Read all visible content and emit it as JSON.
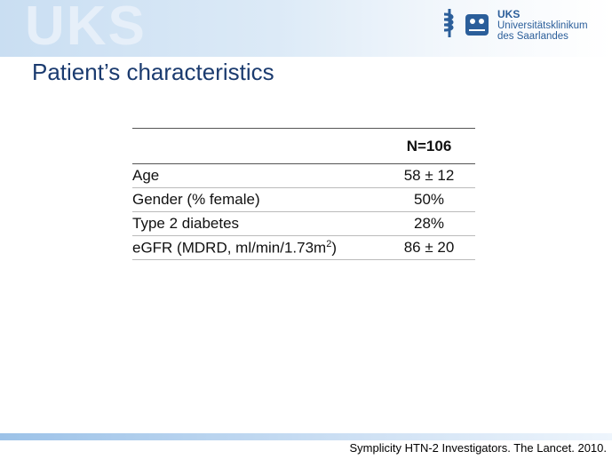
{
  "header": {
    "watermark": "UKS",
    "logo_abbr": "UKS",
    "logo_line1": "Universitätsklinikum",
    "logo_line2": "des Saarlandes"
  },
  "title": "Patient’s characteristics",
  "table": {
    "column_header": "N=106",
    "rows": [
      {
        "label": "Age",
        "value": "58 ± 12"
      },
      {
        "label": "Gender (% female)",
        "value": "50%"
      },
      {
        "label": "Type 2 diabetes",
        "value": "28%"
      },
      {
        "label": "eGFR (MDRD, ml/min/1.73m",
        "label_sup": "2",
        "label_end": ")",
        "value": "86 ± 20"
      }
    ]
  },
  "footer": {
    "citation": "Symplicity HTN-2 Investigators. The Lancet. 2010."
  }
}
